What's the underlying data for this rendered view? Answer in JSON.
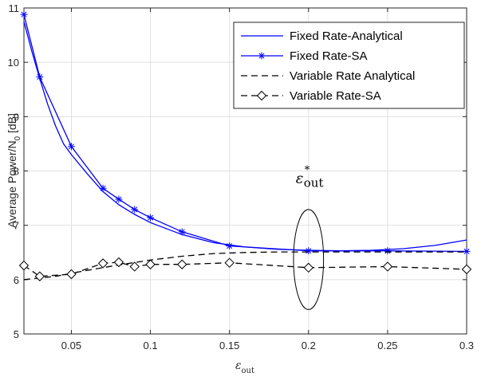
{
  "chart_data": {
    "type": "line",
    "title": "",
    "xlabel": "ε",
    "xlabel_sub": "out",
    "ylabel": "Average Power/N",
    "ylabel_sub": "0",
    "ylabel_suffix": " [dB]",
    "xlim": [
      0.02,
      0.3
    ],
    "ylim": [
      5,
      11
    ],
    "xticks": [
      0.05,
      0.1,
      0.15,
      0.2,
      0.25,
      0.3
    ],
    "xtick_labels": [
      "0.05",
      "0.1",
      "0.15",
      "0.2",
      "0.25",
      "0.3"
    ],
    "yticks": [
      5,
      6,
      7,
      8,
      9,
      10,
      11
    ],
    "ytick_labels": [
      "5",
      "6",
      "7",
      "8",
      "9",
      "10",
      "11"
    ],
    "grid": true,
    "legend_position": "top-right",
    "series": [
      {
        "name": "Fixed Rate-Analytical",
        "color": "#0000ff",
        "line": "solid",
        "marker": "none",
        "x": [
          0.02,
          0.025,
          0.03,
          0.035,
          0.04,
          0.045,
          0.05,
          0.06,
          0.07,
          0.08,
          0.09,
          0.1,
          0.12,
          0.14,
          0.16,
          0.18,
          0.2,
          0.22,
          0.24,
          0.26,
          0.28,
          0.3
        ],
        "y": [
          10.75,
          10.2,
          9.7,
          9.23,
          8.83,
          8.5,
          8.3,
          7.95,
          7.62,
          7.38,
          7.2,
          7.05,
          6.83,
          6.68,
          6.6,
          6.56,
          6.54,
          6.53,
          6.54,
          6.57,
          6.63,
          6.73
        ]
      },
      {
        "name": "Fixed Rate-SA",
        "color": "#0000ff",
        "line": "solid",
        "marker": "asterisk",
        "x": [
          0.02,
          0.03,
          0.05,
          0.07,
          0.08,
          0.09,
          0.1,
          0.12,
          0.15,
          0.2,
          0.25,
          0.3
        ],
        "y": [
          10.88,
          9.73,
          8.45,
          7.68,
          7.48,
          7.29,
          7.14,
          6.88,
          6.62,
          6.53,
          6.53,
          6.52
        ]
      },
      {
        "name": "Variable Rate Analytical",
        "color": "#000000",
        "line": "dashed",
        "marker": "none",
        "x": [
          0.02,
          0.04,
          0.06,
          0.08,
          0.1,
          0.12,
          0.14,
          0.16,
          0.18,
          0.2,
          0.22,
          0.24,
          0.26,
          0.28,
          0.3
        ],
        "y": [
          6.0,
          6.06,
          6.17,
          6.27,
          6.36,
          6.43,
          6.48,
          6.5,
          6.51,
          6.51,
          6.51,
          6.51,
          6.51,
          6.51,
          6.51
        ]
      },
      {
        "name": "Variable Rate-SA",
        "color": "#000000",
        "line": "dashed",
        "marker": "diamond",
        "x": [
          0.02,
          0.03,
          0.05,
          0.07,
          0.08,
          0.09,
          0.1,
          0.12,
          0.15,
          0.2,
          0.25,
          0.3
        ],
        "y": [
          6.26,
          6.06,
          6.1,
          6.3,
          6.32,
          6.24,
          6.28,
          6.28,
          6.31,
          6.22,
          6.24,
          6.19
        ]
      }
    ],
    "annotations": [
      {
        "text": "ε",
        "superscript": "*",
        "subscript": "out",
        "x": 0.2,
        "y": 7.9
      }
    ],
    "ellipse": {
      "cx": 0.2,
      "cy": 6.37,
      "rx": 0.0095,
      "ry": 0.92
    }
  }
}
